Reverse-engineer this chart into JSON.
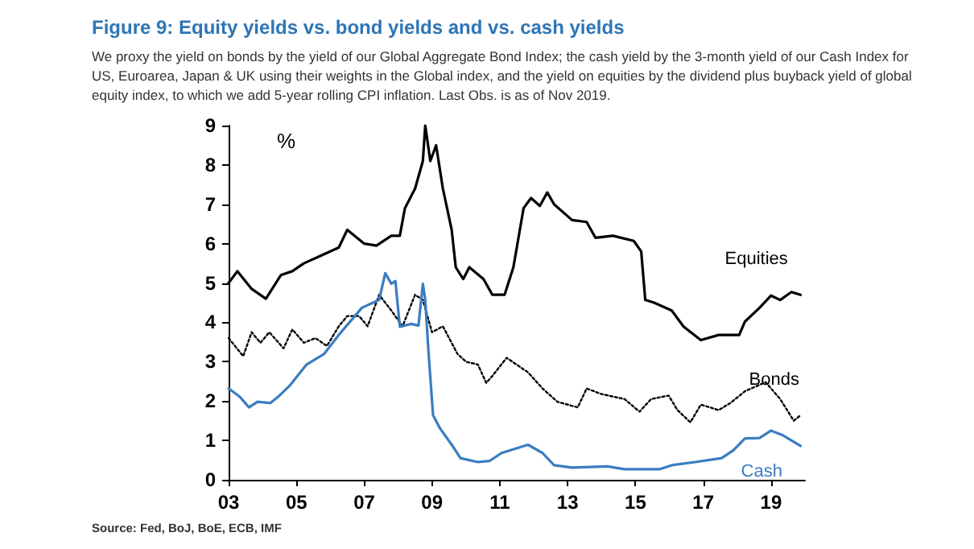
{
  "chart_data": {
    "type": "line",
    "title": "Figure 9: Equity yields vs. bond yields and vs. cash yields",
    "subtitle": "We proxy the yield on bonds by the yield of our Global Aggregate Bond Index; the cash yield by the 3-month yield of our Cash Index for US, Euroarea, Japan & UK using their weights in the Global index, and the yield on equities by the dividend plus buyback yield of global equity index, to which we add 5-year rolling CPI inflation. Last Obs. is as of Nov 2019.",
    "ylabel": "%",
    "annotations": [
      "Source: Fed, BoJ, BoE, ECB, IMF"
    ],
    "xlim": [
      2003,
      2020
    ],
    "xticks": [
      {
        "value": 2003,
        "label": "03"
      },
      {
        "value": 2005,
        "label": "05"
      },
      {
        "value": 2007,
        "label": "07"
      },
      {
        "value": 2009,
        "label": "09"
      },
      {
        "value": 2011,
        "label": "11"
      },
      {
        "value": 2013,
        "label": "13"
      },
      {
        "value": 2015,
        "label": "15"
      },
      {
        "value": 2017,
        "label": "17"
      },
      {
        "value": 2019,
        "label": "19"
      }
    ],
    "ylim": [
      0,
      9
    ],
    "yticks": [
      0,
      1,
      2,
      3,
      4,
      5,
      6,
      7,
      8,
      9
    ],
    "grid": false,
    "marker": "none",
    "series": [
      {
        "name": "Equities",
        "color": "#000000",
        "line_style": "solid",
        "x": [
          2003,
          2003.26,
          2003.68,
          2004.1,
          2004.54,
          2004.88,
          2005.22,
          2005.74,
          2006.25,
          2006.5,
          2007.0,
          2007.36,
          2007.8,
          2008.05,
          2008.2,
          2008.5,
          2008.73,
          2008.8,
          2008.95,
          2009.12,
          2009.32,
          2009.58,
          2009.7,
          2009.92,
          2010.1,
          2010.52,
          2010.78,
          2011.14,
          2011.4,
          2011.7,
          2011.92,
          2012.18,
          2012.4,
          2012.6,
          2013.13,
          2013.56,
          2013.82,
          2014.34,
          2014.95,
          2015.17,
          2015.29,
          2015.55,
          2016.07,
          2016.42,
          2016.93,
          2017.45,
          2018.06,
          2018.23,
          2018.66,
          2019.0,
          2019.27,
          2019.6,
          2019.87
        ],
        "values": [
          5.0,
          5.3,
          4.85,
          4.6,
          5.2,
          5.3,
          5.5,
          5.7,
          5.9,
          6.35,
          6.0,
          5.95,
          6.2,
          6.2,
          6.9,
          7.4,
          8.1,
          9.0,
          8.1,
          8.5,
          7.4,
          6.35,
          5.4,
          5.1,
          5.4,
          5.1,
          4.7,
          4.7,
          5.4,
          6.9,
          7.16,
          6.96,
          7.3,
          7.0,
          6.6,
          6.55,
          6.15,
          6.2,
          6.07,
          5.8,
          4.57,
          4.5,
          4.3,
          3.89,
          3.55,
          3.68,
          3.68,
          4.02,
          4.37,
          4.68,
          4.57,
          4.77,
          4.7
        ]
      },
      {
        "name": "Bonds",
        "color": "#000000",
        "line_style": "dotted",
        "x": [
          2003,
          2003.43,
          2003.68,
          2003.94,
          2004.2,
          2004.62,
          2004.88,
          2005.22,
          2005.56,
          2005.9,
          2006.25,
          2006.5,
          2006.85,
          2007.1,
          2007.44,
          2007.8,
          2008.13,
          2008.5,
          2008.73,
          2009.0,
          2009.32,
          2009.75,
          2010.0,
          2010.35,
          2010.6,
          2010.8,
          2011.2,
          2011.83,
          2012.26,
          2012.7,
          2013.3,
          2013.56,
          2013.99,
          2014.68,
          2015.12,
          2015.46,
          2015.98,
          2016.24,
          2016.62,
          2016.93,
          2017.45,
          2017.8,
          2018.23,
          2018.84,
          2019.27,
          2019.67,
          2019.87
        ],
        "values": [
          3.6,
          3.14,
          3.75,
          3.48,
          3.75,
          3.34,
          3.82,
          3.48,
          3.6,
          3.4,
          3.9,
          4.16,
          4.16,
          3.9,
          4.7,
          4.3,
          3.9,
          4.7,
          4.57,
          3.75,
          3.9,
          3.2,
          3.0,
          2.93,
          2.46,
          2.66,
          3.1,
          2.73,
          2.32,
          1.98,
          1.84,
          2.32,
          2.18,
          2.05,
          1.73,
          2.05,
          2.14,
          1.77,
          1.46,
          1.91,
          1.77,
          1.95,
          2.25,
          2.48,
          2.05,
          1.5,
          1.64
        ]
      },
      {
        "name": "Cash",
        "color": "#3a7dc0",
        "line_style": "solid",
        "x": [
          2003,
          2003.34,
          2003.6,
          2003.85,
          2004.23,
          2004.45,
          2004.8,
          2005.3,
          2005.82,
          2006.25,
          2006.93,
          2007.44,
          2007.62,
          2007.8,
          2007.92,
          2008.05,
          2008.38,
          2008.6,
          2008.73,
          2008.8,
          2008.9,
          2009.03,
          2009.24,
          2009.58,
          2009.84,
          2010.35,
          2010.7,
          2011.05,
          2011.83,
          2012.26,
          2012.6,
          2013.13,
          2014.17,
          2014.68,
          2015.72,
          2016.07,
          2016.76,
          2017.54,
          2017.89,
          2018.23,
          2018.66,
          2019.0,
          2019.35,
          2019.7,
          2019.87
        ],
        "values": [
          2.32,
          2.1,
          1.84,
          1.98,
          1.95,
          2.1,
          2.39,
          2.93,
          3.2,
          3.68,
          4.37,
          4.57,
          5.25,
          4.98,
          5.05,
          3.89,
          3.96,
          3.92,
          4.98,
          4.57,
          3.2,
          1.64,
          1.3,
          0.89,
          0.55,
          0.45,
          0.48,
          0.68,
          0.89,
          0.68,
          0.37,
          0.31,
          0.34,
          0.27,
          0.27,
          0.37,
          0.45,
          0.55,
          0.75,
          1.05,
          1.06,
          1.25,
          1.13,
          0.95,
          0.86
        ]
      }
    ]
  }
}
